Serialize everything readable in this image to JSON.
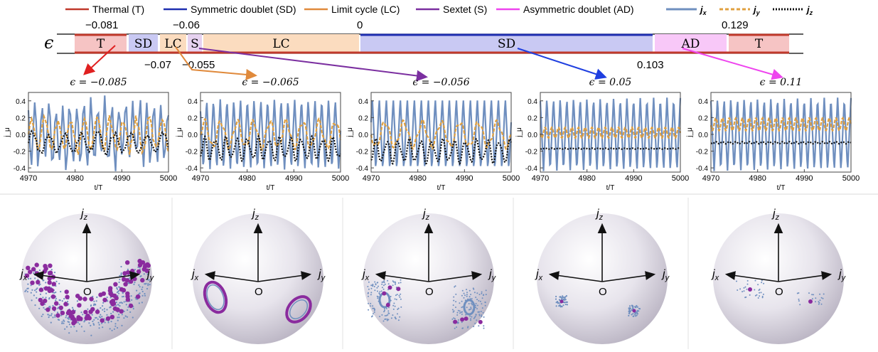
{
  "legend_phases": [
    {
      "label": "Thermal (T)",
      "color": "#c0392b"
    },
    {
      "label": "Symmetric doublet (SD)",
      "color": "#1f2fb0"
    },
    {
      "label": "Limit cycle (LC)",
      "color": "#e08a3c"
    },
    {
      "label": "Sextet (S)",
      "color": "#7b2fa0"
    },
    {
      "label": "Asymmetric doublet (AD)",
      "color": "#ee44ee"
    }
  ],
  "legend_components": [
    {
      "label": "j",
      "sub": "x",
      "color": "#6f8fbf",
      "dash": "solid"
    },
    {
      "label": "j",
      "sub": "y",
      "color": "#e0a040",
      "dash": "dashed"
    },
    {
      "label": "j",
      "sub": "z",
      "color": "#111111",
      "dash": "dotted"
    }
  ],
  "phase_bar": {
    "symbol": "ϵ",
    "segments": [
      {
        "label": "T",
        "fill": "#f6c4c4"
      },
      {
        "label": "SD",
        "fill": "#c9c9f3"
      },
      {
        "label": "LC",
        "fill": "#fbdcbf"
      },
      {
        "label": "S",
        "fill": "#e6d2f0"
      },
      {
        "label": "LC",
        "fill": "#fbdcbf"
      },
      {
        "label": "SD",
        "fill": "#c9c9f3"
      },
      {
        "label": "AD",
        "fill": "#f8c8f8"
      },
      {
        "label": "T",
        "fill": "#f6c4c4"
      }
    ],
    "top_ticks": [
      "−0.081",
      "−0.06",
      "0",
      "0.129"
    ],
    "bottom_ticks": [
      "−0.07",
      "−0.055",
      "0.103"
    ]
  },
  "chart_data": [
    {
      "type": "line",
      "title": "ϵ = −0.085",
      "xlabel": "t/T",
      "ylabel": "j_μ",
      "xlim": [
        4970,
        5000
      ],
      "ylim": [
        -0.45,
        0.5
      ],
      "xticks": [
        "4970",
        "4980",
        "4990",
        "5000"
      ],
      "yticks": [
        "0.4",
        "0.2",
        "0.0",
        "-0.2",
        "-0.4"
      ],
      "series": [
        {
          "name": "j_x",
          "amp": 0.42,
          "offset": 0.0,
          "period": 1.5,
          "chaotic": true
        },
        {
          "name": "j_y",
          "amp": 0.22,
          "offset": 0.0,
          "period": 2.8,
          "chaotic": true
        },
        {
          "name": "j_z",
          "amp": 0.14,
          "offset": -0.1,
          "period": 3.5,
          "chaotic": true
        }
      ]
    },
    {
      "type": "line",
      "title": "ϵ = −0.065",
      "xlabel": "t/T",
      "ylabel": "j_μ",
      "xlim": [
        4970,
        5000
      ],
      "ylim": [
        -0.45,
        0.5
      ],
      "xticks": [
        "4970",
        "4980",
        "4990",
        "5000"
      ],
      "yticks": [
        "0.4",
        "0.2",
        "0.0",
        "-0.2",
        "-0.4"
      ],
      "series": [
        {
          "name": "j_x",
          "amp": 0.42,
          "offset": 0.0,
          "period": 1.45
        },
        {
          "name": "j_y",
          "amp": 0.15,
          "offset": 0.0,
          "period": 3.5
        },
        {
          "name": "j_z",
          "amp": 0.12,
          "offset": -0.17,
          "period": 2.3
        }
      ]
    },
    {
      "type": "line",
      "title": "ϵ = −0.056",
      "xlabel": "t/T",
      "ylabel": "j_μ",
      "xlim": [
        4970,
        5000
      ],
      "ylim": [
        -0.45,
        0.5
      ],
      "xticks": [
        "4970",
        "4980",
        "4990",
        "5000"
      ],
      "yticks": [
        "0.4",
        "0.2",
        "0.0",
        "-0.2",
        "-0.4"
      ],
      "series": [
        {
          "name": "j_x",
          "amp": 0.43,
          "offset": 0.0,
          "period": 1.5
        },
        {
          "name": "j_y",
          "amp": 0.14,
          "offset": 0.0,
          "period": 4.0
        },
        {
          "name": "j_z",
          "amp": 0.12,
          "offset": -0.2,
          "period": 2.4
        }
      ]
    },
    {
      "type": "line",
      "title": "ϵ = 0.05",
      "xlabel": "t/T",
      "ylabel": "j_μ",
      "xlim": [
        4970,
        5000
      ],
      "ylim": [
        -0.45,
        0.5
      ],
      "xticks": [
        "4970",
        "4980",
        "4990",
        "5000"
      ],
      "yticks": [
        "0.4",
        "0.2",
        "0.0",
        "-0.2",
        "-0.4"
      ],
      "series": [
        {
          "name": "j_x",
          "amp": 0.44,
          "offset": 0.0,
          "period": 1.43
        },
        {
          "name": "j_y",
          "amp": 0.05,
          "offset": 0.02,
          "period": 1.43
        },
        {
          "name": "j_z",
          "amp": 0.005,
          "offset": -0.17,
          "period": 1.43
        }
      ]
    },
    {
      "type": "line",
      "title": "ϵ = 0.11",
      "xlabel": "t/T",
      "ylabel": "j_μ",
      "xlim": [
        4970,
        5000
      ],
      "ylim": [
        -0.45,
        0.5
      ],
      "xticks": [
        "4970",
        "4980",
        "4990",
        "5000"
      ],
      "yticks": [
        "0.4",
        "0.2",
        "0.0",
        "-0.2",
        "-0.4"
      ],
      "series": [
        {
          "name": "j_x",
          "amp": 0.44,
          "offset": 0.0,
          "period": 1.43
        },
        {
          "name": "j_y",
          "amp": 0.06,
          "offset": 0.12,
          "period": 1.43
        },
        {
          "name": "j_z",
          "amp": 0.01,
          "offset": -0.1,
          "period": 1.43
        }
      ]
    }
  ],
  "spheres": {
    "axis_labels": {
      "z": "j",
      "x": "j",
      "y": "j",
      "origin": "O"
    },
    "panels": [
      {
        "pattern": "chaotic"
      },
      {
        "pattern": "rings"
      },
      {
        "pattern": "scatter-rings"
      },
      {
        "pattern": "clusters"
      },
      {
        "pattern": "sparse"
      }
    ]
  }
}
